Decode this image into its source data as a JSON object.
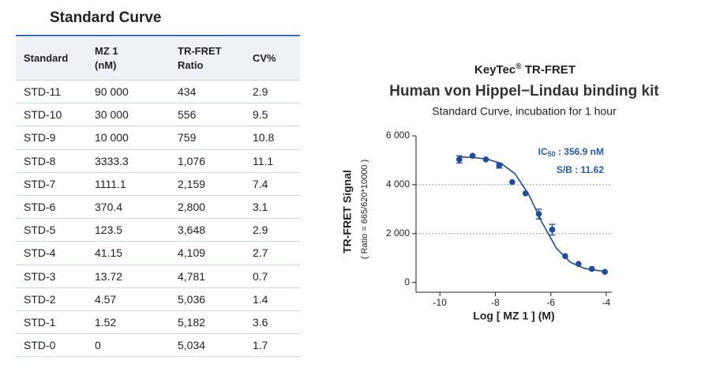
{
  "table": {
    "title": "Standard Curve",
    "headers": [
      [
        "Standard"
      ],
      [
        "MZ 1",
        "(nM)"
      ],
      [
        "TR-FRET",
        "Ratio"
      ],
      [
        "CV%"
      ]
    ],
    "rows": [
      [
        "STD-11",
        "90 000",
        "434",
        "2.9"
      ],
      [
        "STD-10",
        "30 000",
        "556",
        "9.5"
      ],
      [
        "STD-9",
        "10 000",
        "759",
        "10.8"
      ],
      [
        "STD-8",
        "3333.3",
        "1,076",
        "11.1"
      ],
      [
        "STD-7",
        "1111.1",
        "2,159",
        "7.4"
      ],
      [
        "STD-6",
        "370.4",
        "2,800",
        "3.1"
      ],
      [
        "STD-5",
        "123.5",
        "3,648",
        "2.9"
      ],
      [
        "STD-4",
        "41.15",
        "4,109",
        "2.7"
      ],
      [
        "STD-3",
        "13.72",
        "4,781",
        "0.7"
      ],
      [
        "STD-2",
        "4.57",
        "5,036",
        "1.4"
      ],
      [
        "STD-1",
        "1.52",
        "5,182",
        "3.6"
      ],
      [
        "STD-0",
        "0",
        "5,034",
        "1.7"
      ]
    ]
  },
  "chart_data": {
    "type": "scatter",
    "title_parts": [
      "KeyTec",
      "®",
      " TR-FRET"
    ],
    "title": "Human von Hippel−Lindau binding kit",
    "subtitle": "Standard Curve, incubation for 1 hour",
    "x_label": "Log [ MZ 1 ]  (M)",
    "y_label": "TR-FRET Signal",
    "y_label_sub": "( Ratio = 665/620*10000 )",
    "annotations": [
      [
        "IC",
        "50",
        " : 356.9 nM"
      ],
      [
        "S/B : 11.62"
      ]
    ],
    "xlim": [
      -10.86,
      -3.8
    ],
    "xticks": [
      -10,
      -8,
      -6,
      -4
    ],
    "ylim": [
      -400,
      6000
    ],
    "yticks": [
      {
        "value": 0,
        "label": "0"
      },
      {
        "value": 2000,
        "label": "2 000"
      },
      {
        "value": 4000,
        "label": "4 000"
      },
      {
        "value": 6000,
        "label": "6 000"
      }
    ],
    "ygrid": [
      2000,
      4000
    ],
    "series": [
      {
        "color": "#1f4e96",
        "x": [
          -9.3,
          -8.82,
          -8.34,
          -7.86,
          -7.39,
          -6.91,
          -6.43,
          -5.95,
          -5.48,
          -5.0,
          -4.52,
          -4.05
        ],
        "values": [
          5034,
          5182,
          5036,
          4781,
          4109,
          3648,
          2800,
          2159,
          1076,
          759,
          556,
          434
        ],
        "errors": [
          150,
          0,
          0,
          100,
          0,
          0,
          200,
          220,
          0,
          0,
          0,
          0
        ]
      },
      {
        "color": "#1f4e96",
        "kind": "line",
        "x": [
          -9.3,
          -8.8,
          -8.3,
          -7.8,
          -7.3,
          -6.8,
          -6.3,
          -5.8,
          -5.3,
          -4.8,
          -4.3,
          -4.0
        ],
        "values": [
          5137,
          5114,
          5050,
          4878,
          4457,
          3611,
          2425,
          1404,
          829,
          580,
          484,
          459
        ]
      }
    ]
  }
}
